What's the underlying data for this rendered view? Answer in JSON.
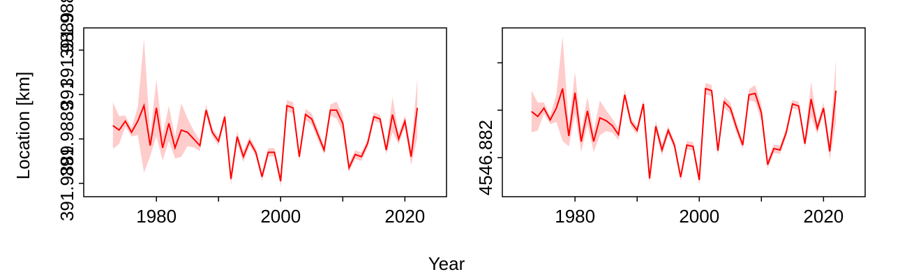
{
  "xlabel": "Year",
  "ylabel": "Location [km]",
  "chart_data": [
    {
      "type": "line",
      "offset_label": "391.9889",
      "x": [
        1973,
        1974,
        1975,
        1976,
        1977,
        1978,
        1979,
        1980,
        1981,
        1982,
        1983,
        1984,
        1985,
        1986,
        1987,
        1988,
        1989,
        1990,
        1991,
        1992,
        1993,
        1994,
        1995,
        1996,
        1997,
        1998,
        1999,
        2000,
        2001,
        2002,
        2003,
        2004,
        2005,
        2006,
        2007,
        2008,
        2009,
        2010,
        2011,
        2012,
        2013,
        2014,
        2015,
        2016,
        2017,
        2018,
        2019,
        2020,
        2021,
        2022
      ],
      "series": [
        {
          "color": "#ff0000",
          "band_color": "#ffcccc",
          "values": [
            391.988886,
            391.988884,
            391.988888,
            391.988883,
            391.988888,
            391.988895,
            391.988877,
            391.988894,
            391.988876,
            391.988887,
            391.988876,
            391.988884,
            391.988883,
            391.98888,
            391.988877,
            391.988893,
            391.988883,
            391.988879,
            391.98889,
            391.988862,
            391.988881,
            391.988872,
            391.988879,
            391.988874,
            391.988863,
            391.988874,
            391.988874,
            391.988861,
            391.988895,
            391.988894,
            391.988872,
            391.988891,
            391.988889,
            391.988882,
            391.988875,
            391.988893,
            391.988893,
            391.988887,
            391.988867,
            391.988873,
            391.988872,
            391.988878,
            391.98889,
            391.988889,
            391.988875,
            391.988891,
            391.98888,
            391.988888,
            391.988872,
            391.988894
          ],
          "errors": [
            1.05e-05,
            6.3e-06,
            2.5e-06,
            1.9e-06,
            6.3e-06,
            3.02e-05,
            4.8e-06,
            1.27e-05,
            5.7e-06,
            7.9e-06,
            4.8e-06,
            1.21e-05,
            6.3e-06,
            3.8e-06,
            2.5e-06,
            2.5e-06,
            1.9e-06,
            1.9e-06,
            1.9e-06,
            2.5e-06,
            2.5e-06,
            2.5e-06,
            1.9e-06,
            1.9e-06,
            1.9e-06,
            1.9e-06,
            1.9e-06,
            2.5e-06,
            2.5e-06,
            2.5e-06,
            1.9e-06,
            2.5e-06,
            2.5e-06,
            2.5e-06,
            1.9e-06,
            2.5e-06,
            3.8e-06,
            3.8e-06,
            1.9e-06,
            1.9e-06,
            1.9e-06,
            1.9e-06,
            1.9e-06,
            1.9e-06,
            1.9e-06,
            7.9e-06,
            2.5e-06,
            2.5e-06,
            3.8e-06,
            1.33e-05
          ]
        }
      ],
      "xlim": [
        1968.3,
        2026.7
      ],
      "xticks": [
        1980,
        2000,
        2020
      ],
      "xminorticks": [
        1990,
        2010
      ],
      "ylim": [
        391.988854,
        391.98893
      ],
      "yticks": [
        {
          "value": 391.98886,
          "label": "391.9889"
        },
        {
          "value": 391.98888,
          "label": "391.9889"
        },
        {
          "value": 391.9889,
          "label": "391"
        },
        {
          "value": 391.98892,
          "label": "391.9889"
        }
      ]
    },
    {
      "type": "line",
      "x": [
        1973,
        1974,
        1975,
        1976,
        1977,
        1978,
        1979,
        1980,
        1981,
        1982,
        1983,
        1984,
        1985,
        1986,
        1987,
        1988,
        1989,
        1990,
        1991,
        1992,
        1993,
        1994,
        1995,
        1996,
        1997,
        1998,
        1999,
        2000,
        2001,
        2002,
        2003,
        2004,
        2005,
        2006,
        2007,
        2008,
        2009,
        2010,
        2011,
        2012,
        2013,
        2014,
        2015,
        2016,
        2017,
        2018,
        2019,
        2020,
        2021,
        2022
      ],
      "series": [
        {
          "color": "#ff0000",
          "band_color": "#ffcccc",
          "values": [
            4546.8820971,
            4546.8820868,
            4546.8821044,
            4546.8820794,
            4546.8821044,
            4546.8821456,
            4546.8820456,
            4546.8821368,
            4546.8820338,
            4546.8820985,
            4546.8820338,
            4546.8820838,
            4546.8820779,
            4546.8820676,
            4546.8820485,
            4546.8821324,
            4546.882075,
            4546.8820574,
            4546.8821132,
            4546.8819559,
            4546.8820662,
            4546.8820162,
            4546.8820574,
            4546.8820265,
            4546.8819588,
            4546.8820265,
            4546.8820235,
            4546.8819529,
            4546.8821456,
            4546.8821412,
            4546.8820147,
            4546.8821176,
            4546.8821044,
            4546.8820632,
            4546.8820265,
            4546.8821324,
            4546.8821353,
            4546.8820941,
            4546.8819853,
            4546.8820191,
            4546.8820162,
            4546.8820529,
            4546.8821132,
            4546.8821088,
            4546.8820294,
            4546.8821235,
            4546.8820618,
            4546.8821044,
            4546.8820132,
            4546.8821412
          ],
          "errors": [
            4.41e-05,
            2.94e-05,
            1.18e-05,
            8.8e-06,
            2.94e-05,
            0.0001103,
            2.21e-05,
            4.41e-05,
            2.21e-05,
            2.94e-05,
            2.21e-05,
            3.68e-05,
            2.21e-05,
            1.47e-05,
            1.18e-05,
            1.18e-05,
            8.8e-06,
            8.8e-06,
            8.8e-06,
            1.18e-05,
            1.18e-05,
            1.18e-05,
            8.8e-06,
            8.8e-06,
            8.8e-06,
            8.8e-06,
            8.8e-06,
            1.18e-05,
            1.18e-05,
            1.18e-05,
            8.8e-06,
            1.18e-05,
            1.18e-05,
            1.18e-05,
            8.8e-06,
            1.18e-05,
            1.76e-05,
            1.76e-05,
            8.8e-06,
            8.8e-06,
            8.8e-06,
            8.8e-06,
            8.8e-06,
            8.8e-06,
            8.8e-06,
            3.68e-05,
            1.18e-05,
            1.18e-05,
            1.76e-05,
            6.62e-05
          ]
        }
      ],
      "xlim": [
        1968.3,
        2026.7
      ],
      "xticks": [
        1980,
        2000,
        2020
      ],
      "xminorticks": [
        1990,
        2010
      ],
      "ylim": [
        4546.8819176,
        4546.8822735
      ],
      "yticks": [
        4546.882
      ],
      "yminorticks": [
        4546.8821,
        4546.8822
      ]
    }
  ]
}
